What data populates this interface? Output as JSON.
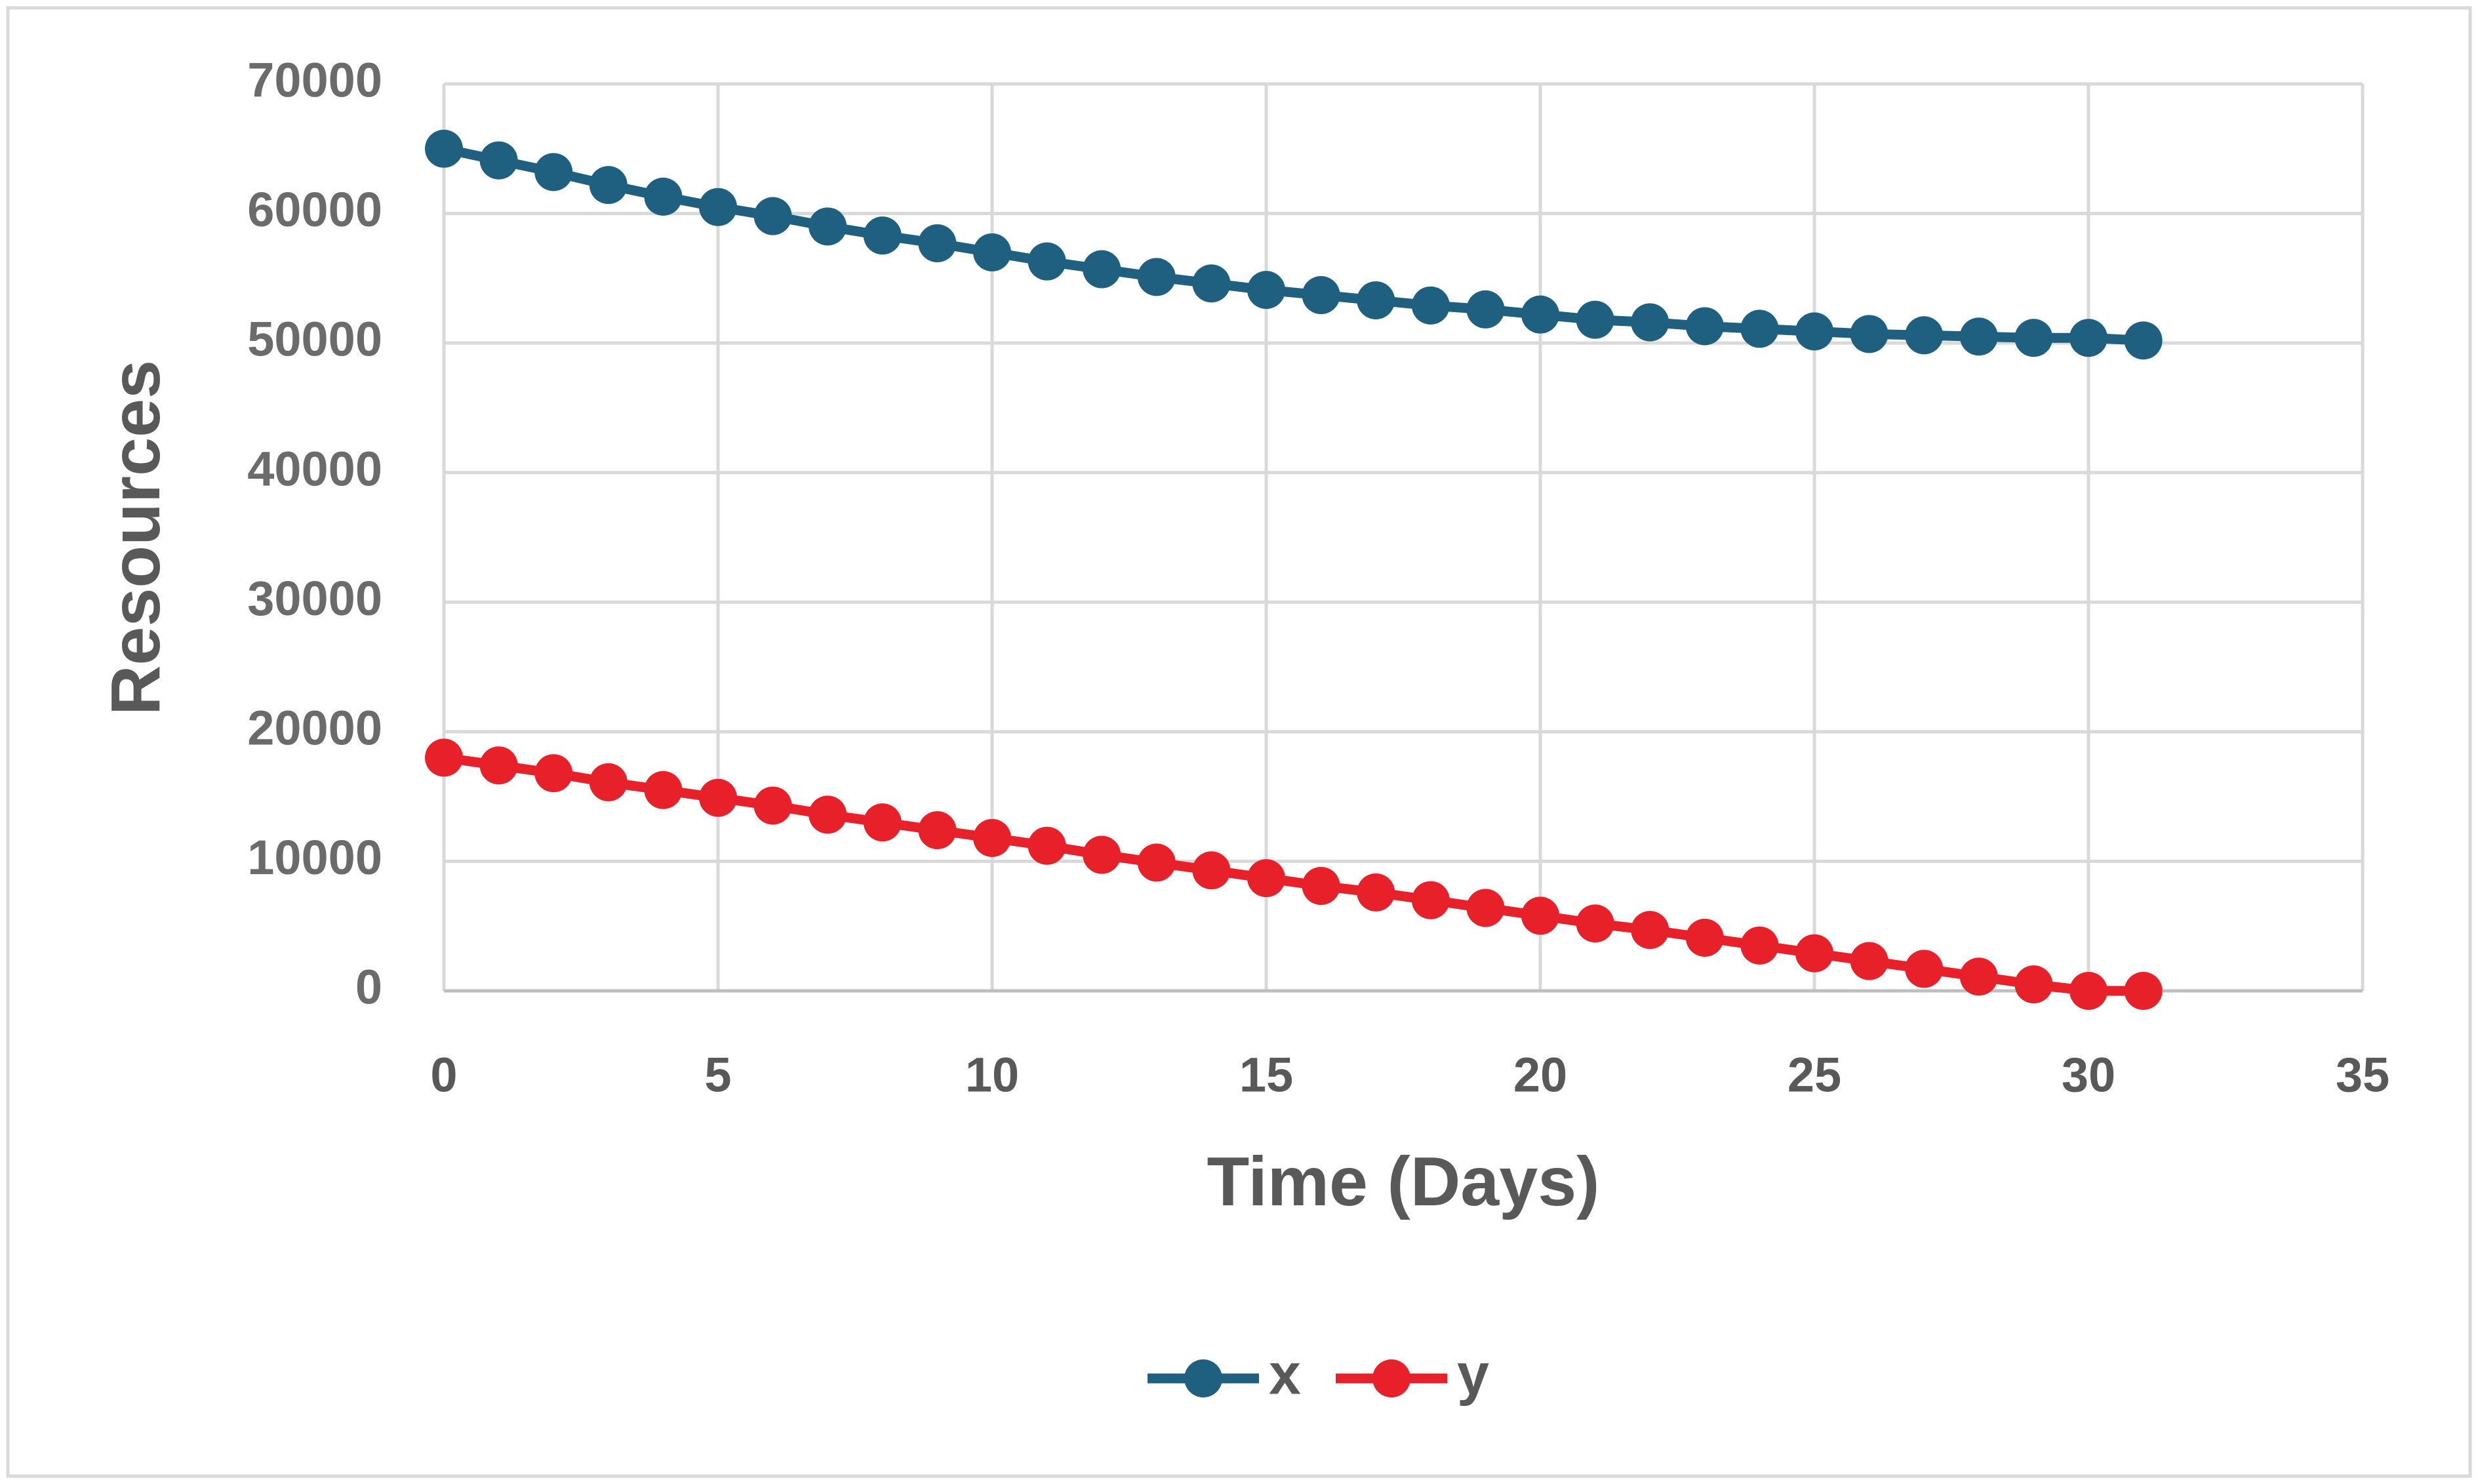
{
  "chart_data": {
    "type": "line",
    "xlabel": "Time (Days)",
    "ylabel": "Resources",
    "x": [
      0,
      1,
      2,
      3,
      4,
      5,
      6,
      7,
      8,
      9,
      10,
      11,
      12,
      13,
      14,
      15,
      16,
      17,
      18,
      19,
      20,
      21,
      22,
      23,
      24,
      25,
      26,
      27,
      28,
      29,
      30,
      31
    ],
    "series": [
      {
        "name": "x",
        "color": "#1f5f80",
        "values": [
          65000,
          64100,
          63200,
          62200,
          61300,
          60500,
          59800,
          59000,
          58300,
          57700,
          57000,
          56300,
          55700,
          55100,
          54600,
          54100,
          53700,
          53300,
          52900,
          52600,
          52200,
          51800,
          51600,
          51300,
          51100,
          50900,
          50700,
          50600,
          50500,
          50400,
          50400,
          50200
        ]
      },
      {
        "name": "y",
        "color": "#e8202a",
        "values": [
          18000,
          17400,
          16800,
          16100,
          15500,
          14900,
          14300,
          13600,
          13000,
          12400,
          11800,
          11200,
          10500,
          9900,
          9300,
          8700,
          8100,
          7600,
          7000,
          6400,
          5800,
          5200,
          4700,
          4100,
          3500,
          2900,
          2300,
          1700,
          1100,
          500,
          0,
          0
        ]
      }
    ],
    "xlim": [
      0,
      35
    ],
    "xticks": [
      0,
      5,
      10,
      15,
      20,
      25,
      30,
      35
    ],
    "ylim": [
      0,
      70000
    ],
    "yticks": [
      0,
      10000,
      20000,
      30000,
      40000,
      50000,
      60000,
      70000
    ],
    "grid": true,
    "markers": true,
    "legend": "bottom"
  }
}
